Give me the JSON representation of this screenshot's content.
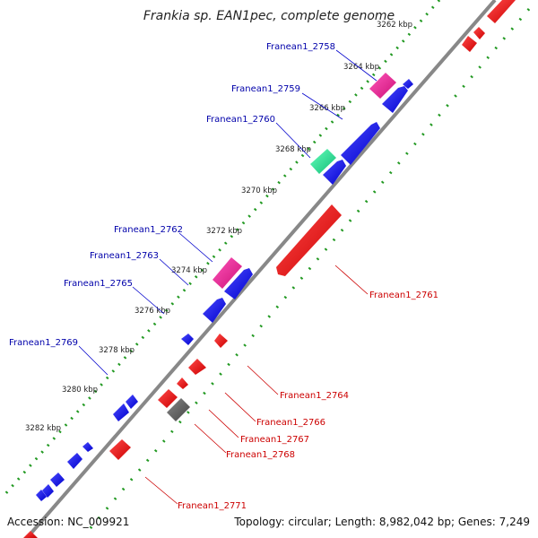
{
  "title": "Frankia sp. EAN1pec, complete genome",
  "footer": {
    "accession": "Accession: NC_009921",
    "summary": "Topology: circular; Length: 8,982,042 bp; Genes: 7,249"
  },
  "colors": {
    "backbone": "#888888",
    "forward": "#0000ee",
    "reverse": "#ee0000",
    "rna": "#ee2288",
    "pseudo": "#22dd88",
    "other": "#666666",
    "dots": "#229922",
    "label_blue": "#0000aa",
    "label_red": "#cc0000"
  },
  "ticks": [
    "3262 kbp",
    "3264 kbp",
    "3266 kbp",
    "3268 kbp",
    "3270 kbp",
    "3272 kbp",
    "3274 kbp",
    "3276 kbp",
    "3278 kbp",
    "3280 kbp",
    "3282 kbp"
  ],
  "gene_labels": {
    "left": [
      "Franean1_2758",
      "Franean1_2759",
      "Franean1_2760",
      "Franean1_2762",
      "Franean1_2763",
      "Franean1_2765",
      "Franean1_2769"
    ],
    "right": [
      "Franean1_2761",
      "Franean1_2764",
      "Franean1_2766",
      "Franean1_2767",
      "Franean1_2768",
      "Franean1_2771"
    ]
  }
}
